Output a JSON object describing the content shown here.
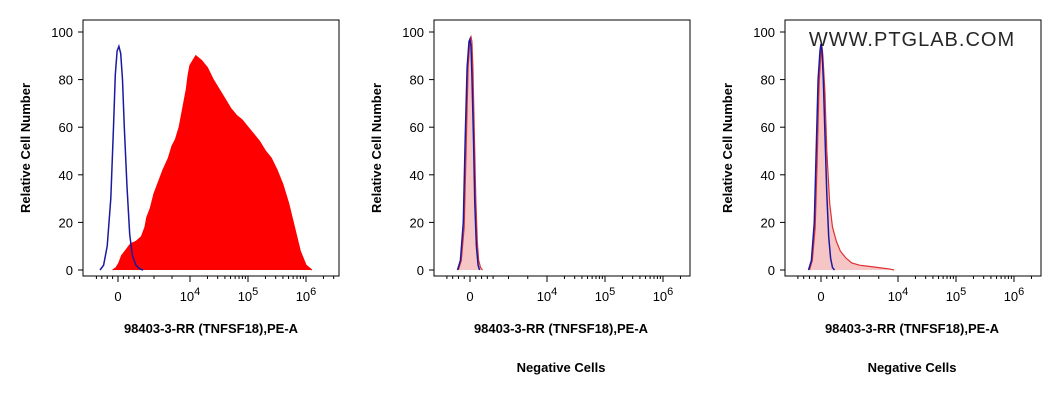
{
  "watermark": "WWW.PTGLAB.COM",
  "colors": {
    "positive_fill": "#ff0000",
    "positive_line": "#ff0000",
    "control_line": "#1a1aa0",
    "negative_fill": "#f7c6c6",
    "negative_line": "#e03030",
    "frame": "#000000"
  },
  "chart_data": [
    {
      "type": "area",
      "ylabel": "Relative Cell Number",
      "xlabel": "98403-3-RR (TNFSF18),PE-A",
      "subtitle": "",
      "ylim": [
        0,
        100
      ],
      "y_ticks": [
        0,
        20,
        40,
        60,
        80,
        100
      ],
      "x_scale": "biexponential",
      "x_tick_labels": [
        {
          "base": "0",
          "exp": ""
        },
        {
          "base": "10",
          "exp": "4"
        },
        {
          "base": "10",
          "exp": "5"
        },
        {
          "base": "10",
          "exp": "6"
        }
      ],
      "x_tick_decades": [
        0,
        4,
        5,
        6
      ],
      "series": [
        {
          "style": "filled",
          "color": "#ff0000",
          "x_decades": [
            -0.3,
            -0.1,
            0.05,
            0.2,
            0.3,
            0.5,
            0.7,
            1.0,
            1.3,
            1.5,
            1.6,
            1.8,
            2.0,
            2.2,
            2.5,
            2.8,
            3.0,
            3.2,
            3.4,
            3.5,
            3.6,
            3.7,
            3.8,
            3.9,
            4.0,
            4.1,
            4.2,
            4.3,
            4.4,
            4.5,
            4.6,
            4.7,
            4.8,
            4.9,
            5.0,
            5.1,
            5.2,
            5.3,
            5.4,
            5.5,
            5.6,
            5.7,
            5.8,
            5.9,
            6.0,
            6.1
          ],
          "values": [
            0,
            1,
            3,
            6,
            7,
            9,
            11,
            12,
            14,
            18,
            22,
            26,
            32,
            36,
            42,
            47,
            52,
            55,
            60,
            64,
            68,
            72,
            76,
            82,
            86,
            90,
            88,
            85,
            80,
            76,
            72,
            68,
            65,
            63,
            60,
            57,
            54,
            50,
            47,
            42,
            36,
            28,
            18,
            8,
            2,
            0
          ]
        },
        {
          "style": "line",
          "color": "#1a1aa0",
          "x_decades": [
            -1.0,
            -0.8,
            -0.6,
            -0.4,
            -0.25,
            -0.15,
            -0.05,
            0.05,
            0.15,
            0.25,
            0.35,
            0.5,
            0.65,
            0.8,
            1.0,
            1.2,
            1.4
          ],
          "values": [
            0,
            2,
            10,
            30,
            60,
            82,
            92,
            94,
            91,
            80,
            60,
            35,
            15,
            6,
            2,
            0.5,
            0
          ]
        }
      ]
    },
    {
      "type": "area",
      "ylabel": "Relative Cell Number",
      "xlabel": "98403-3-RR (TNFSF18),PE-A",
      "subtitle": "Negative Cells",
      "ylim": [
        0,
        100
      ],
      "y_ticks": [
        0,
        20,
        40,
        60,
        80,
        100
      ],
      "x_scale": "biexponential",
      "x_tick_labels": [
        {
          "base": "0",
          "exp": ""
        },
        {
          "base": "10",
          "exp": "4"
        },
        {
          "base": "10",
          "exp": "5"
        },
        {
          "base": "10",
          "exp": "6"
        }
      ],
      "x_tick_decades": [
        0,
        4,
        5,
        6
      ],
      "series": [
        {
          "style": "filled",
          "color": "#e03030",
          "x_decades": [
            -0.6,
            -0.45,
            -0.3,
            -0.2,
            -0.1,
            0.0,
            0.05,
            0.1,
            0.15,
            0.22,
            0.3,
            0.38,
            0.45,
            0.55,
            0.65
          ],
          "values": [
            0,
            4,
            18,
            50,
            85,
            97,
            98,
            96,
            85,
            60,
            30,
            12,
            4,
            1,
            0
          ]
        },
        {
          "style": "line",
          "color": "#1a1aa0",
          "x_decades": [
            -0.65,
            -0.5,
            -0.35,
            -0.25,
            -0.15,
            -0.05,
            0.0,
            0.05,
            0.1,
            0.18,
            0.25,
            0.33,
            0.42,
            0.5
          ],
          "values": [
            0,
            4,
            20,
            55,
            85,
            96,
            97,
            94,
            82,
            55,
            28,
            10,
            2,
            0
          ]
        }
      ]
    },
    {
      "type": "area",
      "ylabel": "Relative Cell Number",
      "xlabel": "98403-3-RR (TNFSF18),PE-A",
      "subtitle": "Negative Cells",
      "ylim": [
        0,
        100
      ],
      "y_ticks": [
        0,
        20,
        40,
        60,
        80,
        100
      ],
      "x_scale": "biexponential",
      "x_tick_labels": [
        {
          "base": "0",
          "exp": ""
        },
        {
          "base": "10",
          "exp": "4"
        },
        {
          "base": "10",
          "exp": "5"
        },
        {
          "base": "10",
          "exp": "6"
        }
      ],
      "x_tick_decades": [
        0,
        4,
        5,
        6
      ],
      "series": [
        {
          "style": "filled",
          "color": "#e03030",
          "x_decades": [
            -0.6,
            -0.45,
            -0.3,
            -0.2,
            -0.1,
            0.0,
            0.05,
            0.1,
            0.2,
            0.3,
            0.45,
            0.6,
            0.8,
            1.0,
            1.3,
            1.6,
            2.0,
            2.5,
            3.0,
            3.5,
            3.8
          ],
          "values": [
            0,
            4,
            18,
            45,
            78,
            92,
            94,
            90,
            75,
            50,
            28,
            18,
            12,
            8,
            5,
            3,
            2,
            1.5,
            1,
            0.5,
            0
          ]
        },
        {
          "style": "line",
          "color": "#1a1aa0",
          "x_decades": [
            -0.65,
            -0.5,
            -0.35,
            -0.25,
            -0.15,
            -0.05,
            0.0,
            0.05,
            0.12,
            0.2,
            0.3,
            0.4,
            0.5,
            0.6,
            0.7
          ],
          "values": [
            0,
            4,
            20,
            50,
            80,
            92,
            95,
            92,
            80,
            58,
            32,
            14,
            5,
            1,
            0
          ]
        }
      ]
    }
  ]
}
